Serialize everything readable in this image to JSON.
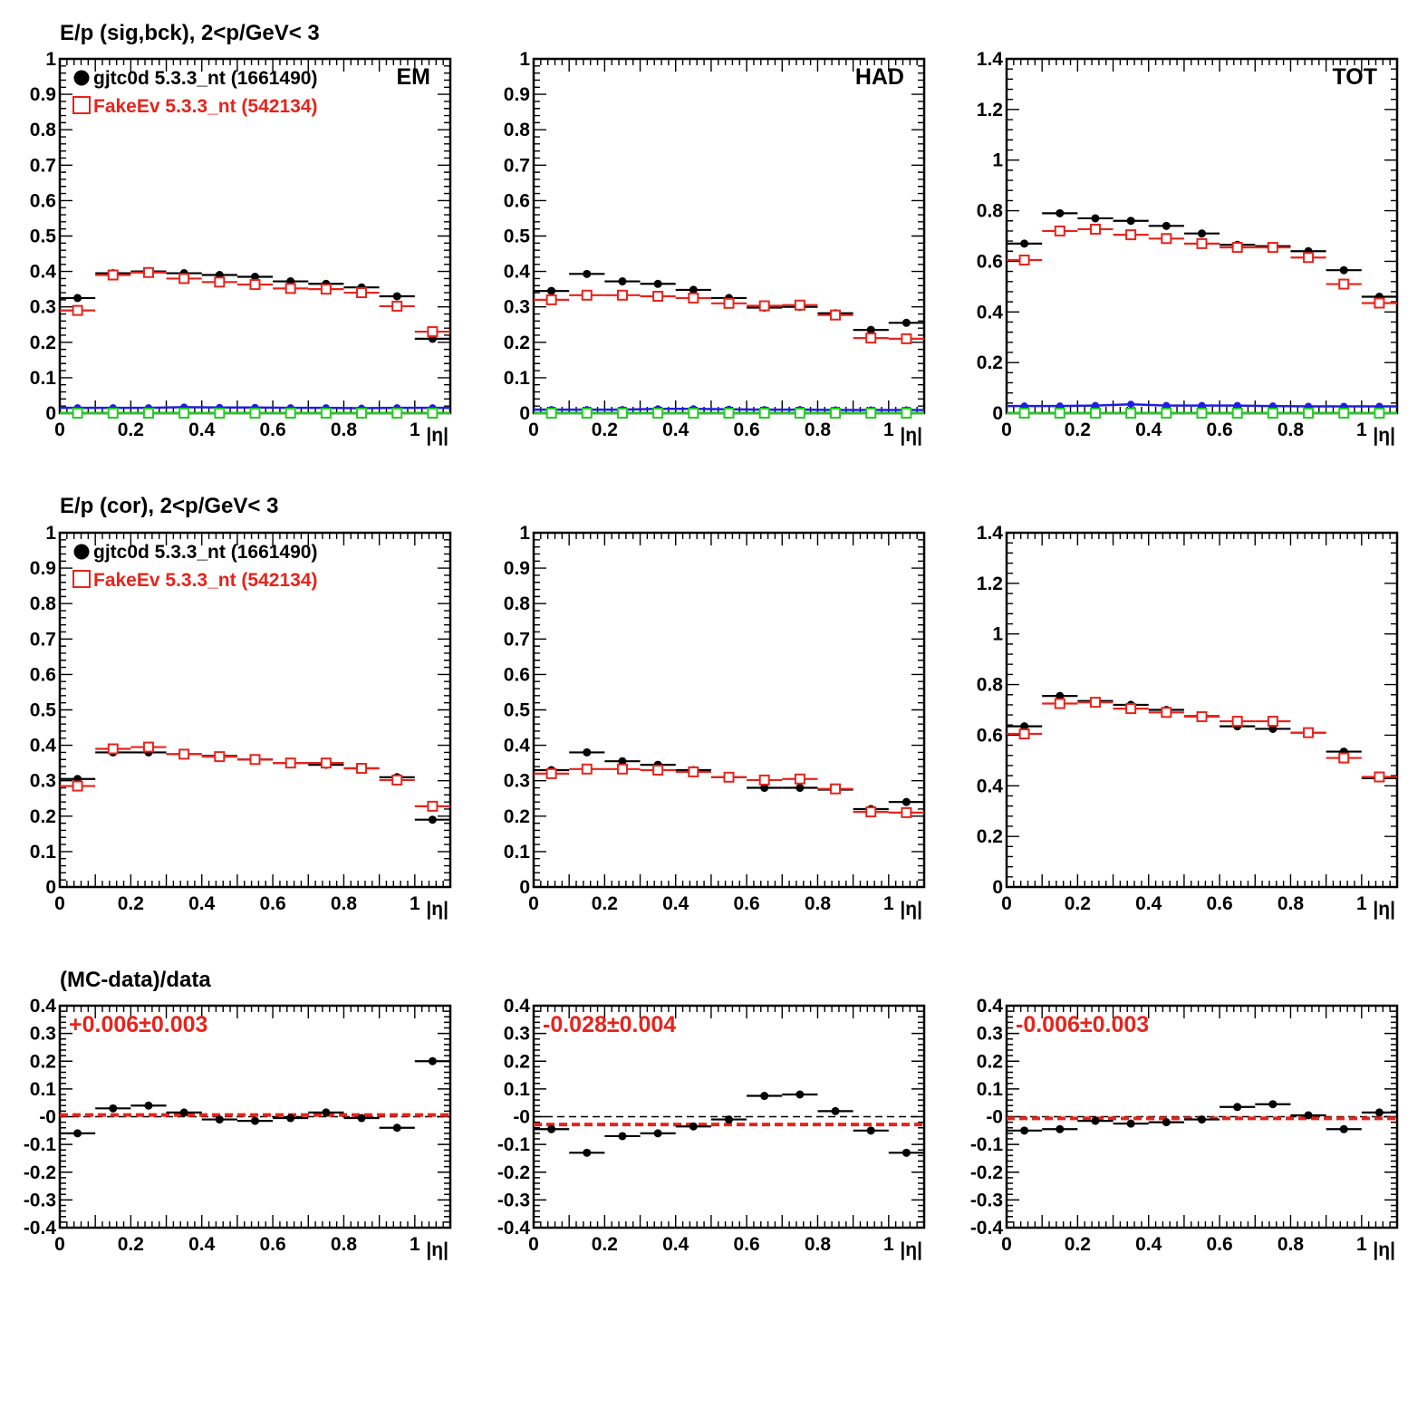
{
  "colors": {
    "data": "#000000",
    "mc": "#e8231b",
    "bkg_data": "#1f1fe0",
    "bkg_mc": "#22cc22",
    "fit": "#e8231b"
  },
  "rows": [
    {
      "title": "E/p (sig,bck),  2<p/GeV< 3"
    },
    {
      "title": "E/p (cor),  2<p/GeV< 3"
    },
    {
      "title": "(MC-data)/data"
    }
  ],
  "legend": {
    "data_label": "gjtc0d 5.3.3_nt (1661490)",
    "mc_label": "FakeEv 5.3.3_nt (542134)"
  },
  "xaxis": {
    "label": "|η|",
    "ticks": [
      "0",
      "0.2",
      "0.4",
      "0.6",
      "0.8",
      "1"
    ]
  },
  "panels": [
    {
      "row": 0,
      "col": 0,
      "tag": "EM"
    },
    {
      "row": 0,
      "col": 1,
      "tag": "HAD"
    },
    {
      "row": 0,
      "col": 2,
      "tag": "TOT"
    },
    {
      "row": 1,
      "col": 0,
      "tag": ""
    },
    {
      "row": 1,
      "col": 1,
      "tag": ""
    },
    {
      "row": 1,
      "col": 2,
      "tag": ""
    },
    {
      "row": 2,
      "col": 0,
      "tag": "",
      "fit_text": "+0.006±0.003"
    },
    {
      "row": 2,
      "col": 1,
      "tag": "",
      "fit_text": "-0.028±0.004"
    },
    {
      "row": 2,
      "col": 2,
      "tag": "",
      "fit_text": "-0.006±0.003"
    }
  ],
  "chart_data": [
    {
      "type": "scatter",
      "panel": "EM",
      "title": "E/p (sig,bck),  2<p/GeV< 3",
      "xlabel": "|η|",
      "xlim": [
        0,
        1.1
      ],
      "ylim": [
        0,
        1
      ],
      "yticks": [
        "0",
        "0.1",
        "0.2",
        "0.3",
        "0.4",
        "0.5",
        "0.6",
        "0.7",
        "0.8",
        "0.9",
        "1"
      ],
      "x": [
        0.05,
        0.15,
        0.25,
        0.35,
        0.45,
        0.55,
        0.65,
        0.75,
        0.85,
        0.95,
        1.05
      ],
      "series": [
        {
          "name": "gjtc0d 5.3.3_nt (1661490)",
          "values": [
            0.325,
            0.395,
            0.4,
            0.395,
            0.39,
            0.385,
            0.372,
            0.365,
            0.355,
            0.33,
            0.21
          ]
        },
        {
          "name": "FakeEv 5.3.3_nt (542134)",
          "values": [
            0.29,
            0.39,
            0.397,
            0.38,
            0.37,
            0.363,
            0.352,
            0.35,
            0.34,
            0.302,
            0.23
          ]
        },
        {
          "values": [
            0.015,
            0.015,
            0.015,
            0.017,
            0.016,
            0.016,
            0.015,
            0.015,
            0.014,
            0.015,
            0.015
          ]
        },
        {
          "values": [
            0.0,
            0.0,
            0.0,
            0.0,
            0.0,
            0.0,
            0.0,
            0.0,
            0.0,
            0.0,
            0.0
          ]
        }
      ]
    },
    {
      "type": "scatter",
      "panel": "HAD",
      "xlabel": "|η|",
      "xlim": [
        0,
        1.1
      ],
      "ylim": [
        0,
        1
      ],
      "yticks": [
        "0",
        "0.1",
        "0.2",
        "0.3",
        "0.4",
        "0.5",
        "0.6",
        "0.7",
        "0.8",
        "0.9",
        "1"
      ],
      "x": [
        0.05,
        0.15,
        0.25,
        0.35,
        0.45,
        0.55,
        0.65,
        0.75,
        0.85,
        0.95,
        1.05
      ],
      "series": [
        {
          "name": "gjtc0d 5.3.3_nt (1661490)",
          "values": [
            0.345,
            0.393,
            0.372,
            0.365,
            0.348,
            0.325,
            0.298,
            0.3,
            0.282,
            0.235,
            0.255
          ]
        },
        {
          "name": "FakeEv 5.3.3_nt (542134)",
          "values": [
            0.32,
            0.333,
            0.333,
            0.33,
            0.325,
            0.31,
            0.303,
            0.305,
            0.277,
            0.212,
            0.21
          ]
        },
        {
          "values": [
            0.01,
            0.01,
            0.01,
            0.012,
            0.012,
            0.011,
            0.01,
            0.01,
            0.009,
            0.009,
            0.009
          ]
        },
        {
          "values": [
            0.0,
            0.0,
            0.0,
            0.0,
            0.0,
            0.0,
            0.0,
            0.0,
            0.0,
            0.0,
            0.0
          ]
        }
      ]
    },
    {
      "type": "scatter",
      "panel": "TOT",
      "xlabel": "|η|",
      "xlim": [
        0,
        1.1
      ],
      "ylim": [
        0,
        1.4
      ],
      "yticks": [
        "0",
        "0.2",
        "0.4",
        "0.6",
        "0.8",
        "1",
        "1.2",
        "1.4"
      ],
      "x": [
        0.05,
        0.15,
        0.25,
        0.35,
        0.45,
        0.55,
        0.65,
        0.75,
        0.85,
        0.95,
        1.05
      ],
      "series": [
        {
          "name": "gjtc0d 5.3.3_nt (1661490)",
          "values": [
            0.67,
            0.79,
            0.77,
            0.76,
            0.74,
            0.71,
            0.665,
            0.66,
            0.64,
            0.565,
            0.46
          ]
        },
        {
          "name": "FakeEv 5.3.3_nt (542134)",
          "values": [
            0.605,
            0.72,
            0.727,
            0.705,
            0.69,
            0.67,
            0.655,
            0.655,
            0.615,
            0.51,
            0.435
          ]
        },
        {
          "values": [
            0.028,
            0.028,
            0.03,
            0.035,
            0.03,
            0.03,
            0.03,
            0.028,
            0.027,
            0.027,
            0.027
          ]
        },
        {
          "values": [
            0.0,
            0.0,
            0.0,
            0.0,
            0.0,
            0.0,
            0.0,
            0.0,
            0.0,
            0.0,
            0.0
          ]
        }
      ]
    },
    {
      "type": "scatter",
      "panel": "EM",
      "title": "E/p (cor),  2<p/GeV< 3",
      "xlabel": "|η|",
      "xlim": [
        0,
        1.1
      ],
      "ylim": [
        0,
        1
      ],
      "yticks": [
        "0",
        "0.1",
        "0.2",
        "0.3",
        "0.4",
        "0.5",
        "0.6",
        "0.7",
        "0.8",
        "0.9",
        "1"
      ],
      "x": [
        0.05,
        0.15,
        0.25,
        0.35,
        0.45,
        0.55,
        0.65,
        0.75,
        0.85,
        0.95,
        1.05
      ],
      "series": [
        {
          "name": "gjtc0d 5.3.3_nt (1661490)",
          "values": [
            0.305,
            0.38,
            0.38,
            0.375,
            0.37,
            0.36,
            0.35,
            0.345,
            0.335,
            0.31,
            0.19
          ]
        },
        {
          "name": "FakeEv 5.3.3_nt (542134)",
          "values": [
            0.285,
            0.39,
            0.395,
            0.375,
            0.368,
            0.36,
            0.35,
            0.35,
            0.335,
            0.302,
            0.228
          ]
        }
      ]
    },
    {
      "type": "scatter",
      "panel": "HAD",
      "xlabel": "|η|",
      "xlim": [
        0,
        1.1
      ],
      "ylim": [
        0,
        1
      ],
      "yticks": [
        "0",
        "0.1",
        "0.2",
        "0.3",
        "0.4",
        "0.5",
        "0.6",
        "0.7",
        "0.8",
        "0.9",
        "1"
      ],
      "x": [
        0.05,
        0.15,
        0.25,
        0.35,
        0.45,
        0.55,
        0.65,
        0.75,
        0.85,
        0.95,
        1.05
      ],
      "series": [
        {
          "name": "gjtc0d 5.3.3_nt (1661490)",
          "values": [
            0.33,
            0.38,
            0.355,
            0.345,
            0.33,
            0.31,
            0.28,
            0.28,
            0.275,
            0.22,
            0.24
          ]
        },
        {
          "name": "FakeEv 5.3.3_nt (542134)",
          "values": [
            0.32,
            0.333,
            0.333,
            0.33,
            0.325,
            0.31,
            0.302,
            0.305,
            0.277,
            0.212,
            0.21
          ]
        }
      ]
    },
    {
      "type": "scatter",
      "panel": "TOT",
      "xlabel": "|η|",
      "xlim": [
        0,
        1.1
      ],
      "ylim": [
        0,
        1.4
      ],
      "yticks": [
        "0",
        "0.2",
        "0.4",
        "0.6",
        "0.8",
        "1",
        "1.2",
        "1.4"
      ],
      "x": [
        0.05,
        0.15,
        0.25,
        0.35,
        0.45,
        0.55,
        0.65,
        0.75,
        0.85,
        0.95,
        1.05
      ],
      "series": [
        {
          "name": "gjtc0d 5.3.3_nt (1661490)",
          "values": [
            0.635,
            0.755,
            0.735,
            0.72,
            0.7,
            0.675,
            0.635,
            0.625,
            0.61,
            0.535,
            0.43
          ]
        },
        {
          "name": "FakeEv 5.3.3_nt (542134)",
          "values": [
            0.605,
            0.725,
            0.73,
            0.705,
            0.69,
            0.673,
            0.655,
            0.655,
            0.61,
            0.51,
            0.435
          ]
        }
      ]
    },
    {
      "type": "scatter",
      "panel": "EM",
      "title": "(MC-data)/data",
      "xlabel": "|η|",
      "xlim": [
        0,
        1.1
      ],
      "ylim": [
        -0.4,
        0.4
      ],
      "yticks": [
        "-0.4",
        "-0.3",
        "-0.2",
        "-0.1",
        "-0",
        "0.1",
        "0.2",
        "0.3",
        "0.4"
      ],
      "x": [
        0.05,
        0.15,
        0.25,
        0.35,
        0.45,
        0.55,
        0.65,
        0.75,
        0.85,
        0.95,
        1.05
      ],
      "series": [
        {
          "values": [
            -0.06,
            0.03,
            0.04,
            0.015,
            -0.01,
            -0.015,
            -0.005,
            0.015,
            -0.005,
            -0.04,
            0.2
          ]
        }
      ],
      "fit": {
        "value": 0.006,
        "error": 0.003,
        "label": "+0.006±0.003"
      }
    },
    {
      "type": "scatter",
      "panel": "HAD",
      "xlabel": "|η|",
      "xlim": [
        0,
        1.1
      ],
      "ylim": [
        -0.4,
        0.4
      ],
      "yticks": [
        "-0.4",
        "-0.3",
        "-0.2",
        "-0.1",
        "-0",
        "0.1",
        "0.2",
        "0.3",
        "0.4"
      ],
      "x": [
        0.05,
        0.15,
        0.25,
        0.35,
        0.45,
        0.55,
        0.65,
        0.75,
        0.85,
        0.95,
        1.05
      ],
      "series": [
        {
          "values": [
            -0.045,
            -0.13,
            -0.07,
            -0.06,
            -0.035,
            -0.01,
            0.075,
            0.08,
            0.02,
            -0.05,
            -0.13
          ]
        }
      ],
      "fit": {
        "value": -0.028,
        "error": 0.004,
        "label": "-0.028±0.004"
      }
    },
    {
      "type": "scatter",
      "panel": "TOT",
      "xlabel": "|η|",
      "xlim": [
        0,
        1.1
      ],
      "ylim": [
        -0.4,
        0.4
      ],
      "yticks": [
        "-0.4",
        "-0.3",
        "-0.2",
        "-0.1",
        "-0",
        "0.1",
        "0.2",
        "0.3",
        "0.4"
      ],
      "x": [
        0.05,
        0.15,
        0.25,
        0.35,
        0.45,
        0.55,
        0.65,
        0.75,
        0.85,
        0.95,
        1.05
      ],
      "series": [
        {
          "values": [
            -0.05,
            -0.045,
            -0.015,
            -0.025,
            -0.02,
            -0.01,
            0.035,
            0.045,
            0.005,
            -0.045,
            0.015
          ]
        }
      ],
      "fit": {
        "value": -0.006,
        "error": 0.003,
        "label": "-0.006±0.003"
      }
    }
  ]
}
